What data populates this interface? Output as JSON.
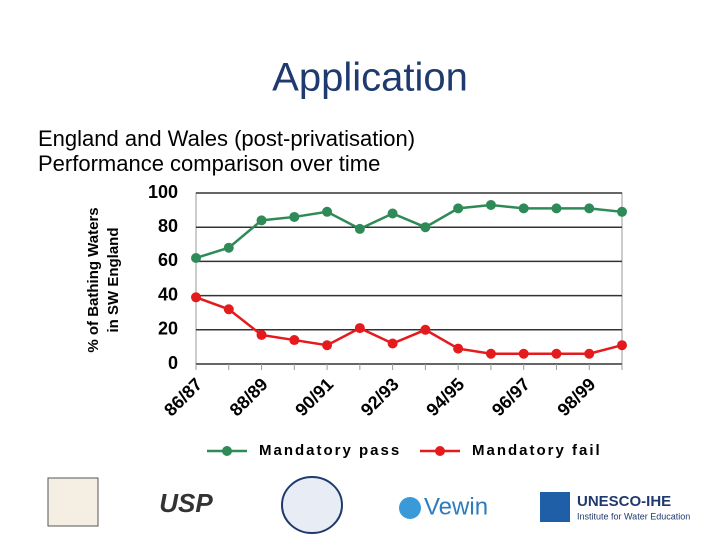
{
  "chart_data": {
    "type": "line",
    "title": "Application",
    "subtitle": [
      "England and Wales (post-privatisation)",
      "Performance comparison over time"
    ],
    "ylabel": [
      "% of Bathing Waters",
      "in SW England"
    ],
    "categories": [
      "86/87",
      null,
      "88/89",
      null,
      "90/91",
      null,
      "92/93",
      null,
      "94/95",
      null,
      "96/97",
      null,
      "98/99",
      null
    ],
    "series": [
      {
        "name": "Mandatory pass",
        "color": "#2e8b57",
        "values": [
          62,
          68,
          84,
          86,
          89,
          79,
          88,
          80,
          91,
          93,
          91,
          91,
          91,
          89
        ]
      },
      {
        "name": "Mandatory fail",
        "color": "#e41a1c",
        "values": [
          39,
          32,
          17,
          14,
          11,
          21,
          12,
          20,
          9,
          6,
          6,
          6,
          6,
          11
        ]
      }
    ],
    "ylim": [
      0,
      100
    ],
    "yticks": [
      0,
      20,
      40,
      60,
      80,
      100
    ],
    "grid": true,
    "legend": "bottom"
  },
  "logos": [
    "USP",
    "Vewin",
    "UNESCO-IHE",
    "Institute for Water Education"
  ]
}
